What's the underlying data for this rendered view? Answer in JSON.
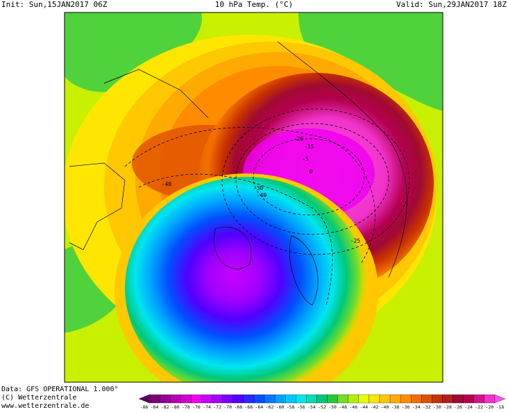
{
  "header": {
    "init": "Init: Sun,15JAN2017 06Z",
    "title": "10 hPa Temp. (°C)",
    "valid": "Valid: Sun,29JAN2017 18Z"
  },
  "footer": {
    "data": "Data: GFS OPERATIONAL 1.000°",
    "copyright": "(C) Wetterzentrale",
    "url": "www.wetterzentrale.de"
  },
  "contour_labels": [
    -20,
    -15,
    -5,
    0,
    -30,
    -40,
    -40,
    -25
  ],
  "legend": {
    "labels": [
      -86,
      -84,
      -82,
      -80,
      -78,
      -76,
      -74,
      -72,
      -70,
      -68,
      -66,
      -64,
      -62,
      -60,
      -58,
      -56,
      -54,
      -52,
      -50,
      -48,
      -46,
      -44,
      -42,
      -40,
      -38,
      -36,
      -34,
      -32,
      -30,
      -28,
      -26,
      -24,
      -22,
      -20,
      -18
    ],
    "colors": [
      "#5a005a",
      "#780078",
      "#960096",
      "#b400b4",
      "#d200d2",
      "#f000f0",
      "#c800ff",
      "#a000ff",
      "#7800ff",
      "#5000ff",
      "#2828ff",
      "#0050ff",
      "#0078ff",
      "#00a0ff",
      "#00c8ff",
      "#00e6f0",
      "#00dcb4",
      "#00c878",
      "#28c83c",
      "#78dc28",
      "#b4f000",
      "#e6ff00",
      "#ffe600",
      "#ffc800",
      "#ffaa00",
      "#ff8c00",
      "#f06e00",
      "#e05000",
      "#c83200",
      "#b41e1e",
      "#a00a32",
      "#b40050",
      "#d2148c",
      "#f032c8",
      "#ff50f0"
    ]
  }
}
